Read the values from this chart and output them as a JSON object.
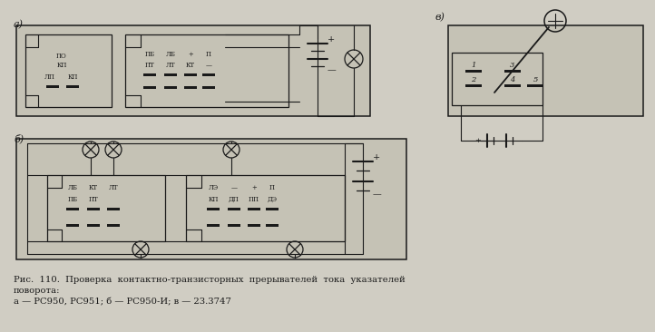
{
  "bg_color": "#d0cdc3",
  "title_label1": "Рис.  110.  Проверка  контактно-транзисторных  прерывателей  тока  указателей",
  "title_label2": "поворота:",
  "title_label3": "а — РС950, РС951; б — РС950-И; в — 23.3747",
  "label_a": "а)",
  "label_b": "б)",
  "label_v": "в)",
  "text_color": "#1a1a1a",
  "line_color": "#1a1a1a",
  "box_bg": "#c5c2b5"
}
